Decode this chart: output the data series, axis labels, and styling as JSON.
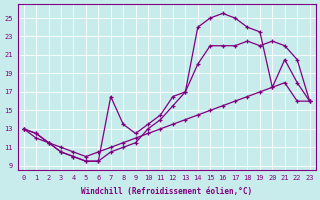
{
  "xlabel": "Windchill (Refroidissement éolien,°C)",
  "bg_color": "#c8ecec",
  "line_color": "#800080",
  "grid_color": "#ffffff",
  "xlim": [
    -0.5,
    23.5
  ],
  "ylim": [
    8.5,
    26.5
  ],
  "yticks": [
    9,
    11,
    13,
    15,
    17,
    19,
    21,
    23,
    25
  ],
  "xticks": [
    0,
    1,
    2,
    3,
    4,
    5,
    6,
    7,
    8,
    9,
    10,
    11,
    12,
    13,
    14,
    15,
    16,
    17,
    18,
    19,
    20,
    21,
    22,
    23
  ],
  "curve1_x": [
    0,
    1,
    2,
    3,
    4,
    5,
    6,
    7,
    8,
    9,
    10,
    11,
    12,
    13,
    14,
    15,
    16,
    17,
    18,
    19,
    20,
    21,
    22,
    23
  ],
  "curve1_y": [
    13.0,
    12.5,
    11.5,
    10.5,
    10.0,
    9.5,
    9.5,
    10.5,
    11.0,
    11.5,
    13.0,
    14.0,
    15.5,
    17.0,
    20.0,
    22.0,
    22.0,
    22.0,
    22.5,
    22.0,
    22.5,
    22.0,
    20.5,
    16.0
  ],
  "curve2_x": [
    0,
    1,
    2,
    3,
    4,
    5,
    6,
    7,
    8,
    9,
    10,
    11,
    12,
    13,
    14,
    15,
    16,
    17,
    18,
    19,
    20,
    21,
    22,
    23
  ],
  "curve2_y": [
    13.0,
    12.5,
    11.5,
    10.5,
    10.0,
    9.5,
    9.5,
    16.5,
    13.5,
    12.5,
    13.5,
    14.5,
    16.5,
    17.0,
    24.0,
    25.0,
    25.5,
    25.0,
    24.0,
    23.5,
    17.5,
    20.5,
    18.0,
    16.0
  ],
  "curve3_x": [
    0,
    1,
    2,
    3,
    4,
    5,
    6,
    7,
    8,
    9,
    10,
    11,
    12,
    13,
    14,
    15,
    16,
    17,
    18,
    19,
    20,
    21,
    22,
    23
  ],
  "curve3_y": [
    13.0,
    12.0,
    11.5,
    11.0,
    10.5,
    10.0,
    10.5,
    11.0,
    11.5,
    12.0,
    12.5,
    13.0,
    13.5,
    14.0,
    14.5,
    15.0,
    15.5,
    16.0,
    16.5,
    17.0,
    17.5,
    18.0,
    16.0,
    16.0
  ]
}
